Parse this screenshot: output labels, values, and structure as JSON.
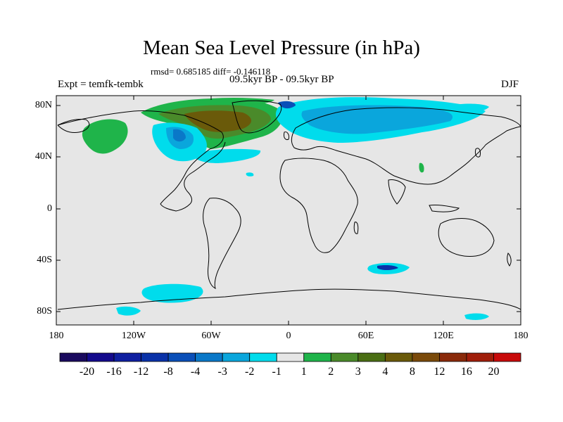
{
  "title": "Mean Sea Level Pressure (in hPa)",
  "stats": "rmsd= 0.685185 diff= -0.146118",
  "period": "09.5kyr BP - 09.5kyr BP",
  "expt": "Expt = temfk-tembk",
  "season": "DJF",
  "y_ticks": [
    "80N",
    "40N",
    "0",
    "40S",
    "80S"
  ],
  "x_ticks": [
    "180",
    "120W",
    "60W",
    "0",
    "60E",
    "120E",
    "180"
  ],
  "colorbar": {
    "labels": [
      "-20",
      "-16",
      "-12",
      "-8",
      "-4",
      "-3",
      "-2",
      "-1",
      "1",
      "2",
      "3",
      "4",
      "8",
      "12",
      "16",
      "20"
    ],
    "colors": [
      "#1a0a5e",
      "#140a8c",
      "#0f1fa0",
      "#0a32a8",
      "#0a4fb8",
      "#0a78c8",
      "#0aa6dc",
      "#00dcec",
      "#e6e6e6",
      "#1fb44a",
      "#4a8a2a",
      "#4a6e14",
      "#6a5a0a",
      "#7a4a0a",
      "#8a2a0a",
      "#a01e0a",
      "#c80a0a"
    ]
  },
  "colors": {
    "land_background": "#e6e6e6",
    "neg_light": "#00dcec",
    "neg_mid": "#0aa6dc",
    "neg_strong": "#0a78c8",
    "pos_light": "#1fb44a",
    "pos_mid": "#4a8a2a",
    "pos_strong": "#6a5a0a"
  }
}
